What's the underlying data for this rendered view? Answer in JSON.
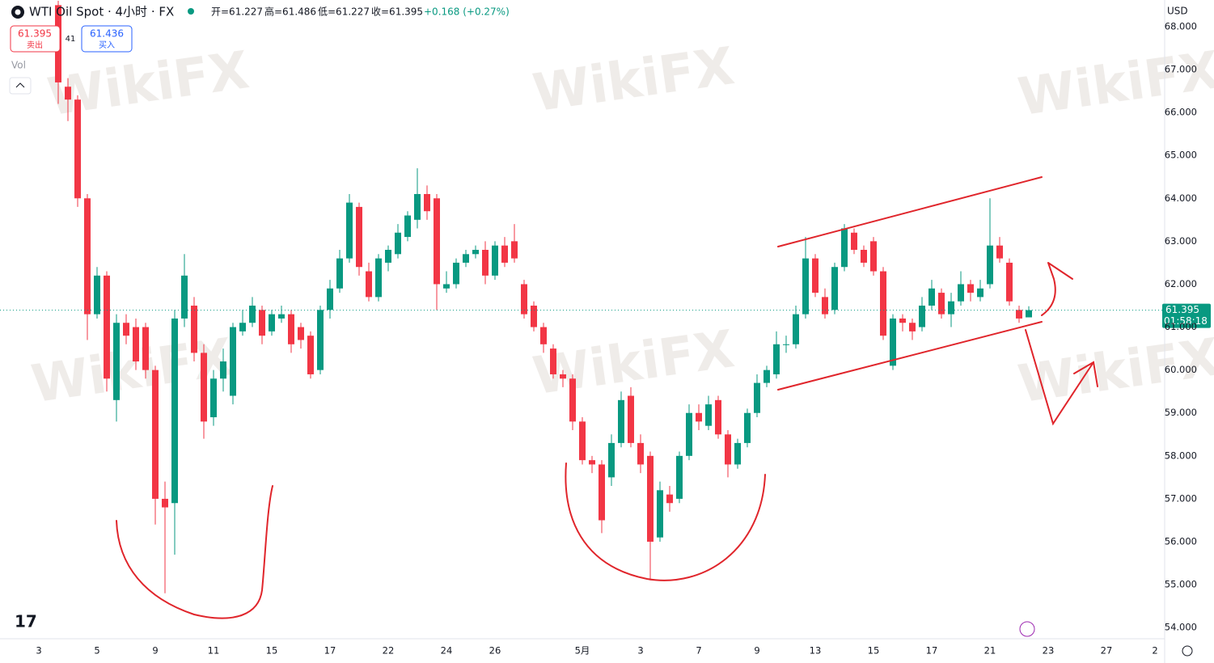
{
  "chart_data": {
    "type": "candlestick",
    "title": "WTI Oil Spot · 4小时 · FX",
    "ohlc_labels": [
      "开=61.227",
      "高=61.486",
      "低=61.227",
      "收=61.395"
    ],
    "change": "+0.168 (+0.27%)",
    "sell": {
      "price": "61.395",
      "label": "卖出"
    },
    "spread": "41",
    "buy": {
      "price": "61.436",
      "label": "买入"
    },
    "volume_label": "Vol",
    "currency": "USD",
    "price_tag": {
      "price": "61.395",
      "countdown": "01:58:18"
    },
    "watermark": "WikiFX",
    "up_color": "#089981",
    "down_color": "#f23645",
    "grid": false,
    "categories": [
      "3",
      null,
      null,
      null,
      null,
      null,
      "5",
      null,
      null,
      null,
      null,
      null,
      "9",
      null,
      null,
      null,
      null,
      null,
      "11",
      null,
      null,
      null,
      null,
      null,
      "15",
      null,
      null,
      null,
      null,
      null,
      "17",
      null,
      null,
      null,
      null,
      null,
      "22",
      null,
      null,
      null,
      null,
      null,
      "24",
      null,
      null,
      null,
      null,
      "26",
      null,
      null,
      null,
      null,
      null,
      null,
      null,
      null,
      "5月",
      null,
      null,
      null,
      null,
      null,
      "3",
      null,
      null,
      null,
      null,
      null,
      "7",
      null,
      null,
      null,
      null,
      null,
      "9",
      null,
      null,
      null,
      null,
      null,
      "13",
      null,
      null,
      null,
      null,
      null,
      "15",
      null,
      null,
      null,
      null,
      null,
      "17",
      null,
      null,
      null,
      null,
      null,
      "21",
      null,
      null,
      null,
      null,
      null,
      "23",
      null,
      null,
      null,
      null,
      null,
      "27",
      null,
      null,
      null,
      null,
      "2"
    ],
    "open": [
      null,
      null,
      68.5,
      66.6,
      66.3,
      64.0,
      61.3,
      62.2,
      59.3,
      61.1,
      61.0,
      61.0,
      60.0,
      57.0,
      56.9,
      61.2,
      61.5,
      60.4,
      58.9,
      59.8,
      59.4,
      60.9,
      61.1,
      61.4,
      60.9,
      61.2,
      61.3,
      61.0,
      60.8,
      60.0,
      61.4,
      61.9,
      62.6,
      63.8,
      62.3,
      61.7,
      62.5,
      62.7,
      63.1,
      63.5,
      64.1,
      64.0,
      61.9,
      62.0,
      62.5,
      62.7,
      62.8,
      62.2,
      62.9,
      63.0,
      62.0,
      61.5,
      61.0,
      60.5,
      59.9,
      59.8,
      58.8,
      57.9,
      57.8,
      57.5,
      58.3,
      59.4,
      58.3,
      58.0,
      56.1,
      57.1,
      57.0,
      58.0,
      59.0,
      58.7,
      59.3,
      58.5,
      57.8,
      58.3,
      59.0,
      59.7,
      59.9,
      60.6,
      60.6,
      61.3,
      62.6,
      61.7,
      61.4,
      62.4,
      63.2,
      62.8,
      63.0,
      62.3,
      60.1,
      61.2,
      61.1,
      61.0,
      61.5,
      61.8,
      61.3,
      61.6,
      62.0,
      61.7,
      62.0,
      62.9,
      62.5,
      61.4,
      61.227,
      null,
      null,
      null,
      null,
      null,
      null,
      null,
      null,
      null,
      null,
      null,
      null,
      null
    ],
    "high": [
      null,
      null,
      68.6,
      66.8,
      66.4,
      64.1,
      62.4,
      62.3,
      61.3,
      61.3,
      61.2,
      61.1,
      60.1,
      57.4,
      61.4,
      62.7,
      61.7,
      60.6,
      60.0,
      60.5,
      61.1,
      61.4,
      61.7,
      61.5,
      61.4,
      61.5,
      61.4,
      61.1,
      60.9,
      61.5,
      62.1,
      62.8,
      64.1,
      63.9,
      62.5,
      62.7,
      62.9,
      63.4,
      63.7,
      64.7,
      64.3,
      64.1,
      62.3,
      62.6,
      62.8,
      62.9,
      63.0,
      63.0,
      63.1,
      63.4,
      62.1,
      61.6,
      61.1,
      60.6,
      60.0,
      59.9,
      58.9,
      58.0,
      57.9,
      58.5,
      59.5,
      59.6,
      58.5,
      58.1,
      57.4,
      57.3,
      58.1,
      59.2,
      59.2,
      59.4,
      59.4,
      58.6,
      58.4,
      59.1,
      59.9,
      60.1,
      60.9,
      60.8,
      61.5,
      63.1,
      62.7,
      61.9,
      62.5,
      63.4,
      63.3,
      62.9,
      63.1,
      62.4,
      61.3,
      61.3,
      61.2,
      61.7,
      62.1,
      61.9,
      61.8,
      62.3,
      62.1,
      62.1,
      64.0,
      63.1,
      62.6,
      61.5,
      61.486,
      null,
      null,
      null,
      null,
      null,
      null,
      null,
      null,
      null,
      null,
      null,
      null,
      null
    ],
    "low": [
      null,
      null,
      66.2,
      65.8,
      63.8,
      60.7,
      61.2,
      59.5,
      58.8,
      60.6,
      60.0,
      59.8,
      56.4,
      54.8,
      55.7,
      61.0,
      60.2,
      58.4,
      58.7,
      59.5,
      59.2,
      60.8,
      61.0,
      60.6,
      60.8,
      61.1,
      60.4,
      60.5,
      59.8,
      59.9,
      61.2,
      61.8,
      62.5,
      62.2,
      61.6,
      61.6,
      62.3,
      62.6,
      63.0,
      63.3,
      63.5,
      61.4,
      61.8,
      61.9,
      62.4,
      62.6,
      62.0,
      62.1,
      62.4,
      62.5,
      61.2,
      60.9,
      60.4,
      59.8,
      59.6,
      58.6,
      57.8,
      57.6,
      56.2,
      57.3,
      58.2,
      58.2,
      57.6,
      55.1,
      56.0,
      56.7,
      56.9,
      57.9,
      58.6,
      58.6,
      58.4,
      57.5,
      57.7,
      58.2,
      58.9,
      59.6,
      59.8,
      60.4,
      60.5,
      61.2,
      61.7,
      61.2,
      61.3,
      62.3,
      62.7,
      62.4,
      62.2,
      60.7,
      60.0,
      60.9,
      60.7,
      60.9,
      61.4,
      61.2,
      61.0,
      61.5,
      61.6,
      61.6,
      61.9,
      62.5,
      61.5,
      61.1,
      61.227,
      null,
      null,
      null,
      null,
      null,
      null,
      null,
      null,
      null,
      null,
      null,
      null,
      null
    ],
    "close": [
      null,
      null,
      66.7,
      66.3,
      64.0,
      61.3,
      62.2,
      59.8,
      61.1,
      60.8,
      60.2,
      60.0,
      57.0,
      56.8,
      61.2,
      62.2,
      60.4,
      58.8,
      59.8,
      60.2,
      61.0,
      61.1,
      61.5,
      60.8,
      61.3,
      61.3,
      60.6,
      60.7,
      59.9,
      61.4,
      61.9,
      62.6,
      63.9,
      62.4,
      61.7,
      62.6,
      62.8,
      63.2,
      63.6,
      64.1,
      63.7,
      62.0,
      62.0,
      62.5,
      62.7,
      62.8,
      62.2,
      62.9,
      62.5,
      62.6,
      61.3,
      61.0,
      60.6,
      59.9,
      59.8,
      58.8,
      57.9,
      57.8,
      56.5,
      58.3,
      59.3,
      58.3,
      57.8,
      56.0,
      57.2,
      56.9,
      58.0,
      59.0,
      58.8,
      59.2,
      58.5,
      57.8,
      58.3,
      59.0,
      59.7,
      60.0,
      60.6,
      60.6,
      61.3,
      62.6,
      61.8,
      61.3,
      62.4,
      63.3,
      62.8,
      62.5,
      62.3,
      60.8,
      61.2,
      61.1,
      60.9,
      61.5,
      61.9,
      61.3,
      61.6,
      62.0,
      61.8,
      61.9,
      62.9,
      62.6,
      61.6,
      61.2,
      61.395,
      null,
      null,
      null,
      null,
      null,
      null,
      null,
      null,
      null,
      null,
      null,
      null,
      null
    ],
    "ylim": [
      53.74,
      68.62
    ],
    "yticks": [
      {
        "value": 54,
        "label": "54.000"
      },
      {
        "value": 55,
        "label": "55.000"
      },
      {
        "value": 56,
        "label": "56.000"
      },
      {
        "value": 57,
        "label": "57.000"
      },
      {
        "value": 58,
        "label": "58.000"
      },
      {
        "value": 59,
        "label": "59.000"
      },
      {
        "value": 60,
        "label": "60.000"
      },
      {
        "value": 61,
        "label": "61.000"
      },
      {
        "value": 62,
        "label": "62.000"
      },
      {
        "value": 63,
        "label": "63.000"
      },
      {
        "value": 64,
        "label": "64.000"
      },
      {
        "value": 65,
        "label": "65.000"
      },
      {
        "value": 66,
        "label": "66.000"
      },
      {
        "value": 67,
        "label": "67.000"
      },
      {
        "value": 68,
        "label": "68.000"
      }
    ]
  }
}
